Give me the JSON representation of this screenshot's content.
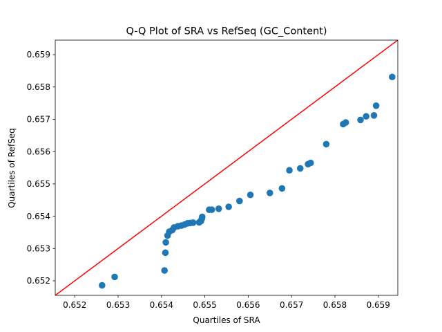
{
  "chart_data": {
    "type": "scatter",
    "title": "Q-Q Plot of SRA vs RefSeq (GC_Content)",
    "xlabel": "Quartiles of SRA",
    "ylabel": "Quartiles of RefSeq",
    "xlim": [
      0.65155,
      0.65945
    ],
    "ylim": [
      0.65155,
      0.65945
    ],
    "xticks": [
      "0.652",
      "0.653",
      "0.654",
      "0.655",
      "0.656",
      "0.657",
      "0.658",
      "0.659"
    ],
    "yticks": [
      "0.652",
      "0.653",
      "0.654",
      "0.655",
      "0.656",
      "0.657",
      "0.658",
      "0.659"
    ],
    "xtick_values": [
      0.652,
      0.653,
      0.654,
      0.655,
      0.656,
      0.657,
      0.658,
      0.659
    ],
    "ytick_values": [
      0.652,
      0.653,
      0.654,
      0.655,
      0.656,
      0.657,
      0.658,
      0.659
    ],
    "point_color": "#1f77b4",
    "reference_line_color": "#ff0000",
    "reference_line": [
      [
        0.65155,
        0.65155
      ],
      [
        0.65945,
        0.65945
      ]
    ],
    "points": [
      [
        0.65263,
        0.65186
      ],
      [
        0.65292,
        0.65212
      ],
      [
        0.65407,
        0.65232
      ],
      [
        0.65409,
        0.65287
      ],
      [
        0.6541,
        0.65319
      ],
      [
        0.65414,
        0.6534
      ],
      [
        0.65418,
        0.65352
      ],
      [
        0.65425,
        0.65357
      ],
      [
        0.65429,
        0.65365
      ],
      [
        0.65438,
        0.65369
      ],
      [
        0.65446,
        0.65371
      ],
      [
        0.65453,
        0.65374
      ],
      [
        0.6546,
        0.65378
      ],
      [
        0.65466,
        0.65379
      ],
      [
        0.65473,
        0.6538
      ],
      [
        0.65487,
        0.65381
      ],
      [
        0.65491,
        0.65385
      ],
      [
        0.65493,
        0.65392
      ],
      [
        0.65494,
        0.65398
      ],
      [
        0.6551,
        0.6542
      ],
      [
        0.65516,
        0.6542
      ],
      [
        0.65532,
        0.65423
      ],
      [
        0.65555,
        0.65429
      ],
      [
        0.6558,
        0.65447
      ],
      [
        0.65605,
        0.65466
      ],
      [
        0.6565,
        0.65472
      ],
      [
        0.65678,
        0.65486
      ],
      [
        0.65695,
        0.65542
      ],
      [
        0.6572,
        0.65548
      ],
      [
        0.65738,
        0.65561
      ],
      [
        0.65744,
        0.65565
      ],
      [
        0.6578,
        0.65623
      ],
      [
        0.65819,
        0.65685
      ],
      [
        0.65825,
        0.6569
      ],
      [
        0.65859,
        0.65698
      ],
      [
        0.65872,
        0.65709
      ],
      [
        0.6589,
        0.65712
      ],
      [
        0.65895,
        0.65742
      ],
      [
        0.65932,
        0.65831
      ]
    ]
  }
}
